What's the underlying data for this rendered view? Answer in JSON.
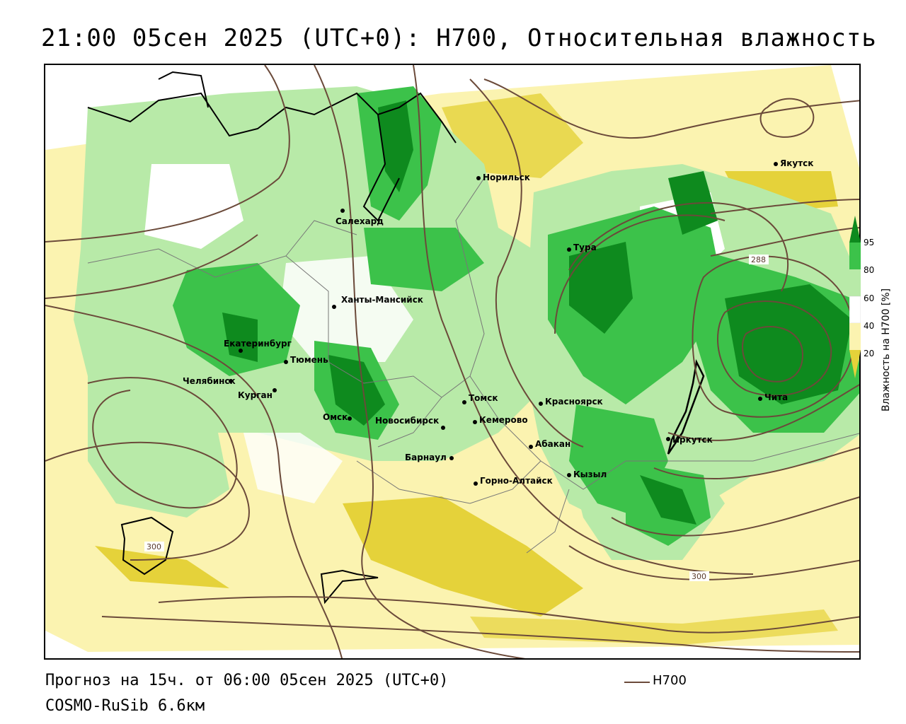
{
  "title": "21:00 05сен 2025 (UTC+0): H700, Относительная влажность",
  "footer": {
    "forecast": "Прогноз на 15ч. от 06:00 05сен 2025 (UTC+0)",
    "model": "COSMO-RuSib 6.6км"
  },
  "legend": {
    "line_label": "H700",
    "line_color": "#6b4a3a"
  },
  "colorbar": {
    "title": "Влажность на H700 [%]",
    "ticks": [
      "95",
      "80",
      "60",
      "40",
      "20"
    ],
    "colors": {
      "dark_green": "#0e8a1e",
      "green": "#3cc24a",
      "light_green": "#b8eaa8",
      "white": "#ffffff",
      "light_yellow": "#fbf3b0",
      "yellow": "#e5d23a"
    }
  },
  "cities": [
    {
      "name": "Норильск"
    },
    {
      "name": "Якутск"
    },
    {
      "name": "Салехард"
    },
    {
      "name": "Тура"
    },
    {
      "name": "Ханты-Мансийск"
    },
    {
      "name": "Екатеринбург"
    },
    {
      "name": "Тюмень"
    },
    {
      "name": "Челябинск"
    },
    {
      "name": "Курган"
    },
    {
      "name": "Омск"
    },
    {
      "name": "Новосибирск"
    },
    {
      "name": "Томск"
    },
    {
      "name": "Кемерово"
    },
    {
      "name": "Красноярск"
    },
    {
      "name": "Барнаул"
    },
    {
      "name": "Абакан"
    },
    {
      "name": "Иркутск"
    },
    {
      "name": "Чита"
    },
    {
      "name": "Кызыл"
    },
    {
      "name": "Горно-Алтайск"
    }
  ],
  "contour_labels": [
    "288",
    "300",
    "300"
  ]
}
